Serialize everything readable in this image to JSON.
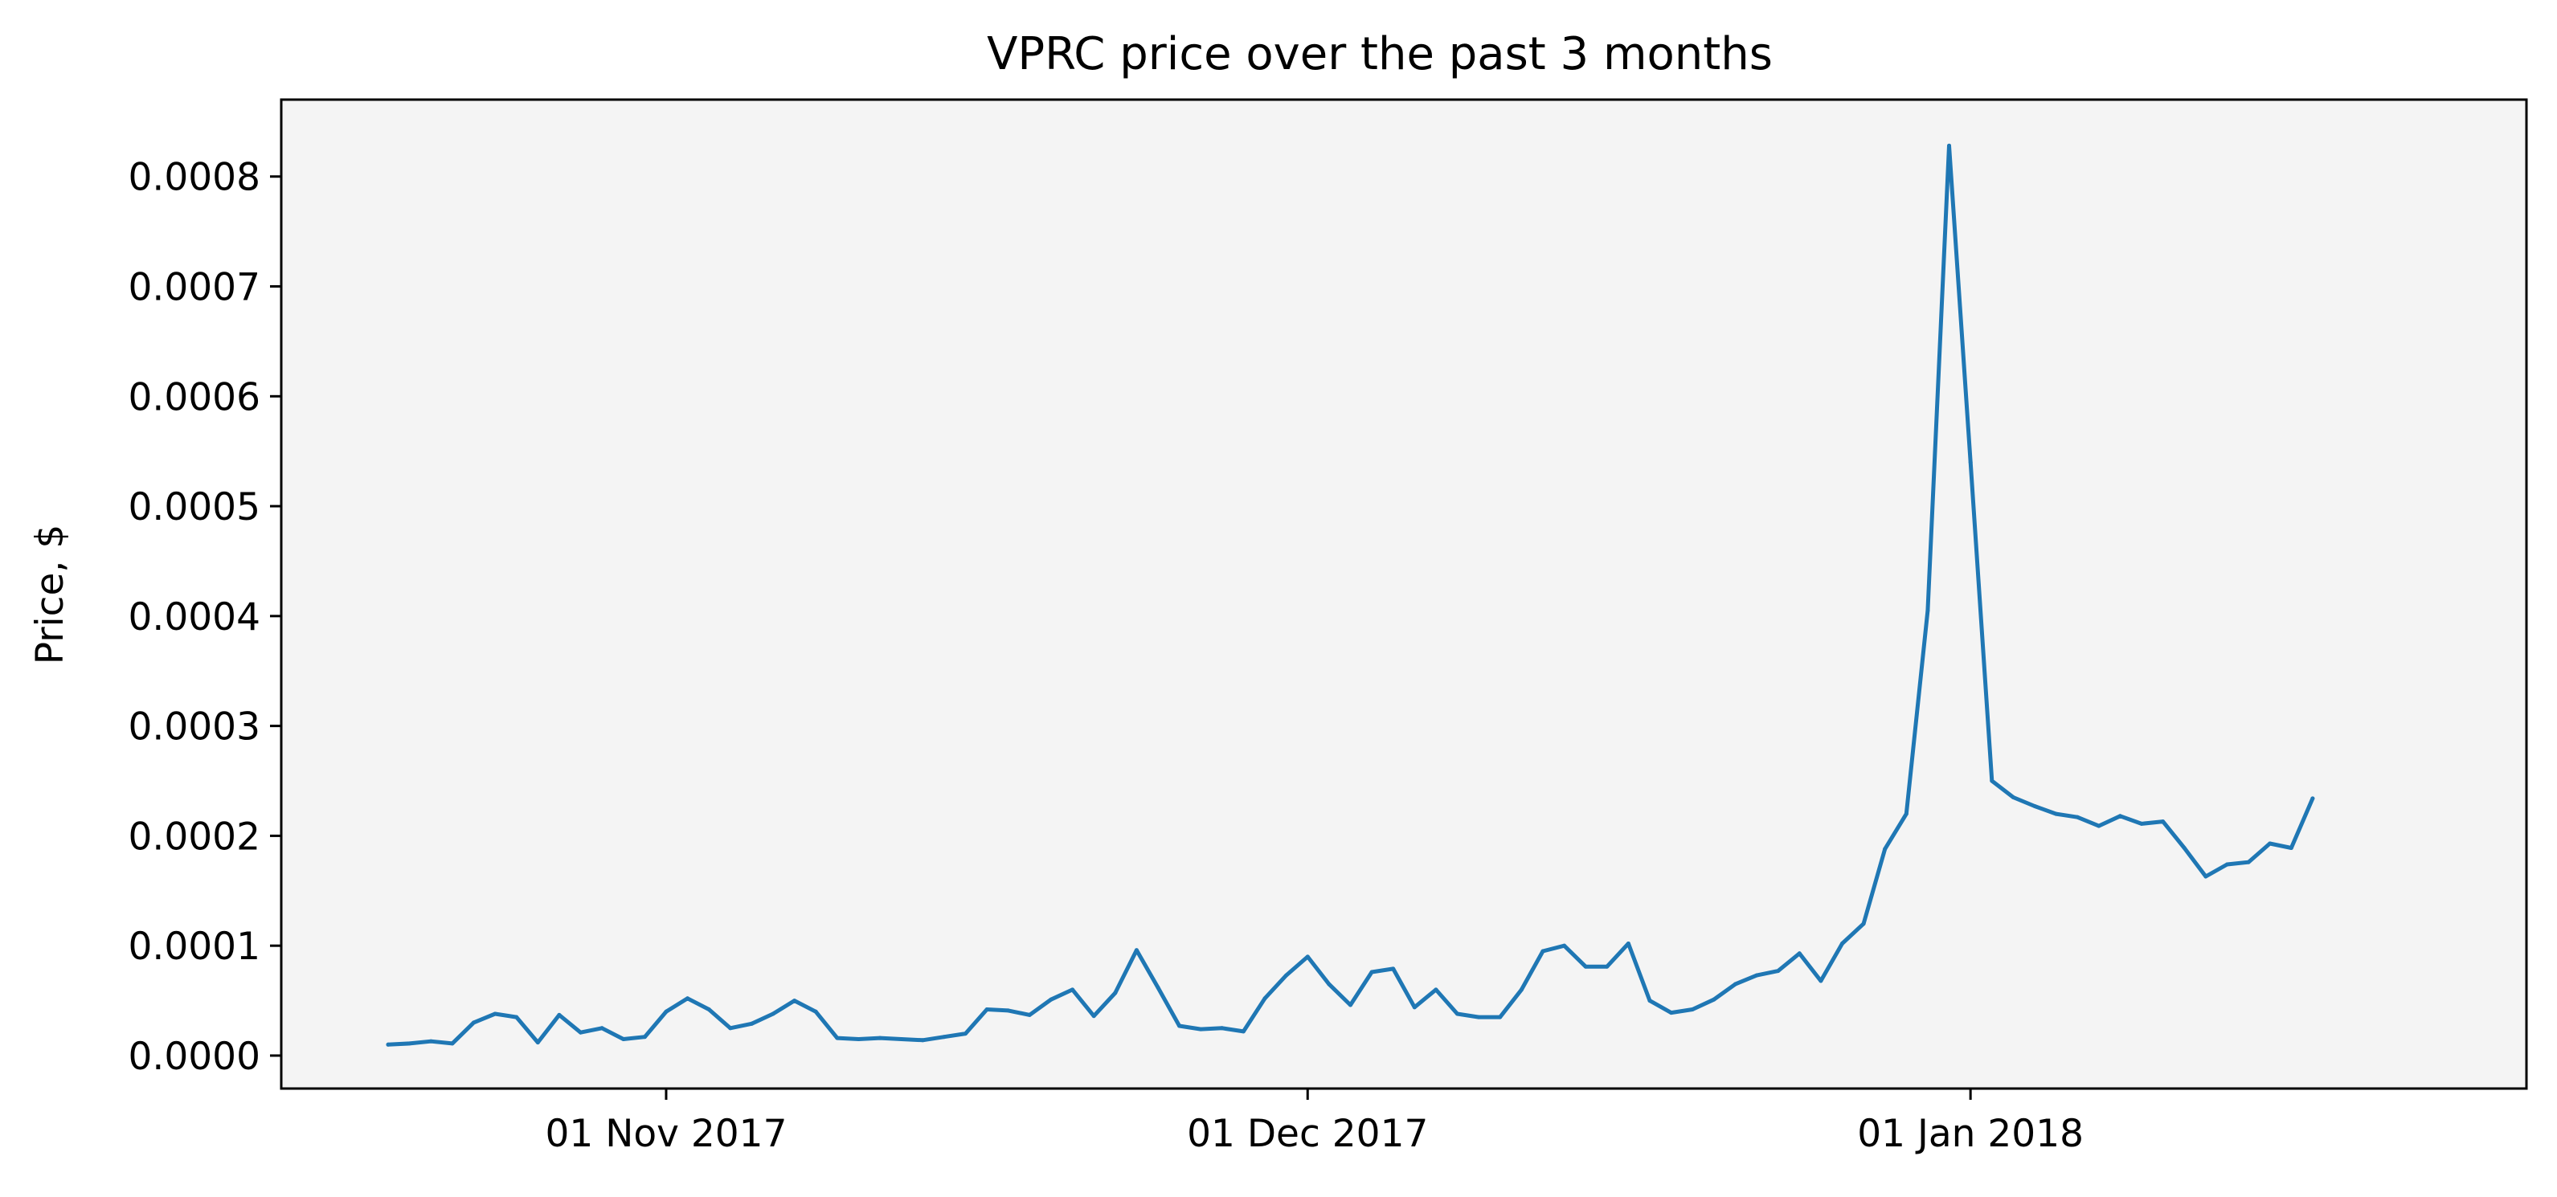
{
  "chart_data": {
    "type": "line",
    "title": "VPRC price over the past 3 months",
    "xlabel": "",
    "ylabel": "Price, $",
    "x_start": "2017-10-19",
    "x_step_days": 1,
    "xlim": [
      "2017-10-14",
      "2018-01-27"
    ],
    "ylim": [
      -3e-05,
      0.00087
    ],
    "x_ticks": [
      {
        "date": "2017-11-01",
        "label": "01 Nov 2017"
      },
      {
        "date": "2017-12-01",
        "label": "01 Dec 2017"
      },
      {
        "date": "2018-01-01",
        "label": "01 Jan 2018"
      }
    ],
    "y_ticks": [
      {
        "value": 0.0,
        "label": "0.0000"
      },
      {
        "value": 0.0001,
        "label": "0.0001"
      },
      {
        "value": 0.0002,
        "label": "0.0002"
      },
      {
        "value": 0.0003,
        "label": "0.0003"
      },
      {
        "value": 0.0004,
        "label": "0.0004"
      },
      {
        "value": 0.0005,
        "label": "0.0005"
      },
      {
        "value": 0.0006,
        "label": "0.0006"
      },
      {
        "value": 0.0007,
        "label": "0.0007"
      },
      {
        "value": 0.0008,
        "label": "0.0008"
      }
    ],
    "grid": false,
    "legend": "none",
    "colors": {
      "line": "#1f77b4",
      "plot_bg": "#f4f4f4",
      "axes": "#000000"
    },
    "series": [
      {
        "values": [
          1e-05,
          1.1e-05,
          1.3e-05,
          1.1e-05,
          3e-05,
          3.8e-05,
          3.5e-05,
          1.2e-05,
          3.7e-05,
          2.1e-05,
          2.5e-05,
          1.5e-05,
          1.7e-05,
          4e-05,
          5.2e-05,
          4.2e-05,
          2.5e-05,
          2.9e-05,
          3.8e-05,
          5e-05,
          4e-05,
          1.6e-05,
          1.5e-05,
          1.6e-05,
          1.5e-05,
          1.4e-05,
          1.7e-05,
          2e-05,
          4.2e-05,
          4.1e-05,
          3.7e-05,
          5.1e-05,
          6e-05,
          3.6e-05,
          5.7e-05,
          9.6e-05,
          6.2e-05,
          2.7e-05,
          2.4e-05,
          2.5e-05,
          2.2e-05,
          5.2e-05,
          7.3e-05,
          9e-05,
          6.5e-05,
          4.6e-05,
          7.6e-05,
          7.9e-05,
          4.4e-05,
          6e-05,
          3.8e-05,
          3.5e-05,
          3.5e-05,
          6e-05,
          9.5e-05,
          0.0001,
          8.1e-05,
          8.1e-05,
          0.000102,
          5e-05,
          3.9e-05,
          4.2e-05,
          5.1e-05,
          6.5e-05,
          7.3e-05,
          7.7e-05,
          9.3e-05,
          6.8e-05,
          0.000102,
          0.00012,
          0.000188,
          0.00022,
          0.000405,
          0.000828,
          0.00054,
          0.00025,
          0.000235,
          0.000227,
          0.00022,
          0.000217,
          0.000209,
          0.000218,
          0.000211,
          0.000213,
          0.000189,
          0.000163,
          0.000174,
          0.000176,
          0.000193,
          0.000189,
          0.000234
        ]
      }
    ]
  }
}
